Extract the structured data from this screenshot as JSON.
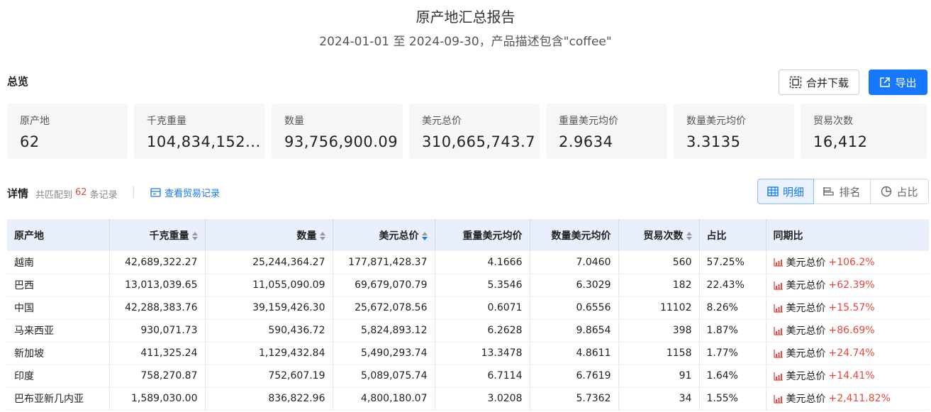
{
  "header": {
    "title": "原产地汇总报告",
    "subtitle": "2024-01-01 至 2024-09-30，产品描述包含\"coffee\""
  },
  "overview": {
    "label": "总览",
    "merge_download": "合并下载",
    "export": "导出",
    "stats": [
      {
        "label": "原产地",
        "value": "62"
      },
      {
        "label": "千克重量",
        "value": "104,834,152..."
      },
      {
        "label": "数量",
        "value": "93,756,900.09"
      },
      {
        "label": "美元总价",
        "value": "310,665,743.7"
      },
      {
        "label": "重量美元均价",
        "value": "2.9634"
      },
      {
        "label": "数量美元均价",
        "value": "3.3135"
      },
      {
        "label": "贸易次数",
        "value": "16,412"
      }
    ]
  },
  "detail": {
    "label": "详情",
    "match_prefix": "共匹配到",
    "match_count": "62",
    "match_suffix": "条记录",
    "view_records": "查看贸易记录",
    "views": [
      "明细",
      "排名",
      "占比"
    ]
  },
  "table": {
    "columns": [
      "原产地",
      "千克重量",
      "数量",
      "美元总价",
      "重量美元均价",
      "数量美元均价",
      "贸易次数",
      "占比",
      "同期比"
    ],
    "yoy_label": "美元总价",
    "rows": [
      [
        "越南",
        "42,689,322.27",
        "25,244,364.27",
        "177,871,428.37",
        "4.1666",
        "7.0460",
        "560",
        "57.25%",
        "+106.2%"
      ],
      [
        "巴西",
        "13,013,039.65",
        "11,055,090.09",
        "69,679,070.79",
        "5.3546",
        "6.3029",
        "182",
        "22.43%",
        "+62.39%"
      ],
      [
        "中国",
        "42,288,383.76",
        "39,159,426.30",
        "25,672,078.56",
        "0.6071",
        "0.6556",
        "11102",
        "8.26%",
        "+15.57%"
      ],
      [
        "马来西亚",
        "930,071.73",
        "590,436.72",
        "5,824,893.12",
        "6.2628",
        "9.8654",
        "398",
        "1.87%",
        "+86.69%"
      ],
      [
        "新加坡",
        "411,325.24",
        "1,129,432.84",
        "5,490,293.74",
        "13.3478",
        "4.8611",
        "1158",
        "1.77%",
        "+24.74%"
      ],
      [
        "印度",
        "758,270.87",
        "752,607.19",
        "5,089,075.74",
        "6.7114",
        "6.7619",
        "91",
        "1.64%",
        "+14.41%"
      ],
      [
        "巴布亚新几内亚",
        "1,589,030.00",
        "836,822.96",
        "4,800,180.07",
        "3.0208",
        "5.7362",
        "34",
        "1.55%",
        "+2,411.82%"
      ]
    ]
  },
  "colors": {
    "accent": "#1677ff",
    "up": "#e8483a",
    "header_bg": "#e9effd"
  }
}
